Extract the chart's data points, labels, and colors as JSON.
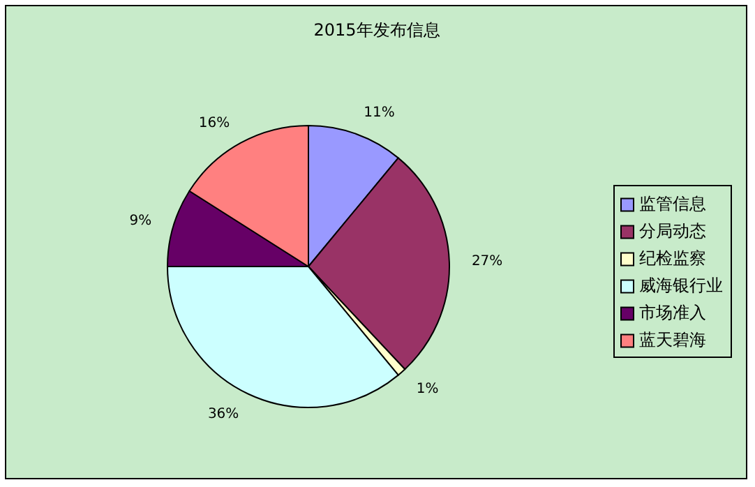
{
  "chart_data": {
    "type": "pie",
    "title": "2015年发布信息",
    "categories": [
      "监管信息",
      "分局动态",
      "纪检监察",
      "威海银行业",
      "市场准入",
      "蓝天碧海"
    ],
    "values": [
      11,
      27,
      1,
      36,
      9,
      16
    ],
    "colors": [
      "#9999ff",
      "#993366",
      "#ffffcc",
      "#ccffff",
      "#660066",
      "#ff8080"
    ],
    "value_labels": [
      "11%",
      "27%",
      "1%",
      "36%",
      "9%",
      "16%"
    ],
    "legend": "right"
  }
}
